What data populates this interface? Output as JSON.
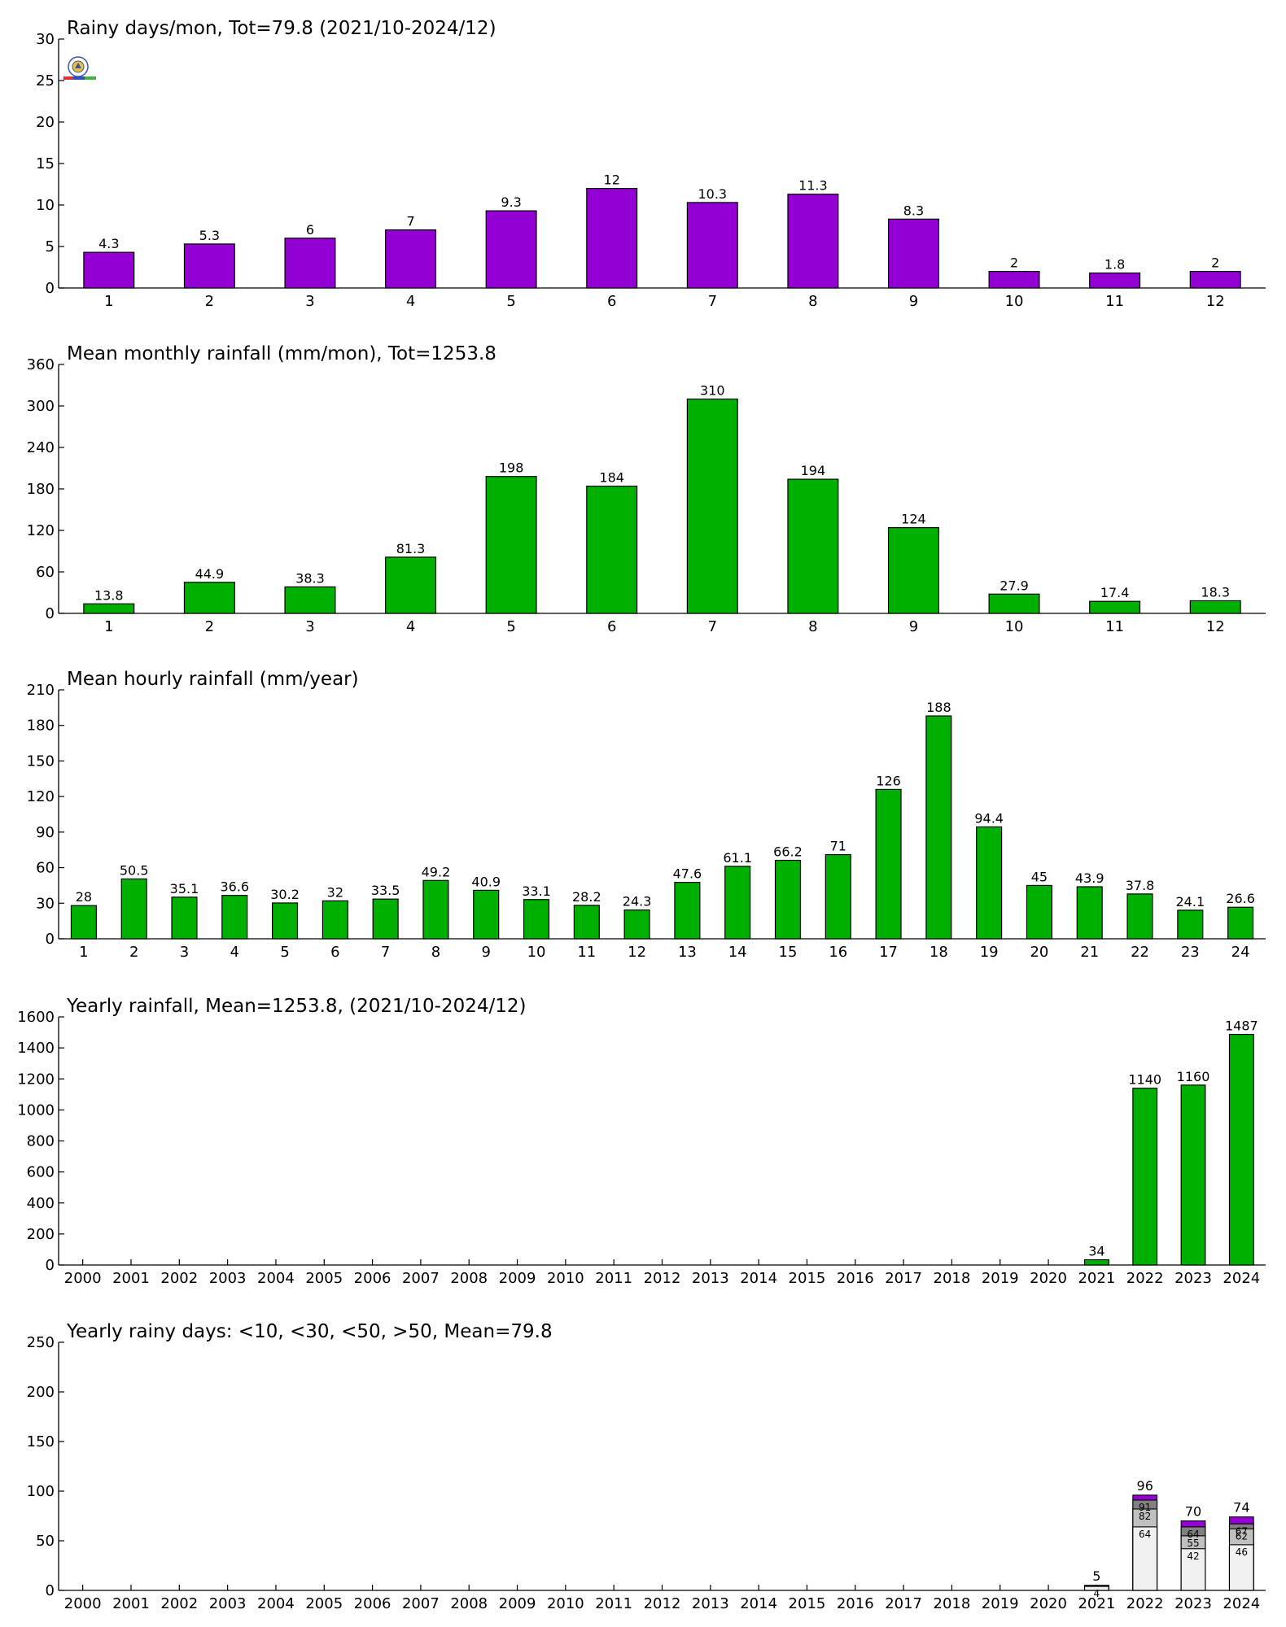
{
  "chart_data": [
    {
      "type": "bar",
      "title": "Rainy days/mon, Tot=79.8 (2021/10-2024/12)",
      "xlabel": "",
      "ylabel": "",
      "categories": [
        "1",
        "2",
        "3",
        "4",
        "5",
        "6",
        "7",
        "8",
        "9",
        "10",
        "11",
        "12"
      ],
      "values": [
        4.3,
        5.3,
        6,
        7,
        9.3,
        12,
        10.3,
        11.3,
        8.3,
        2,
        1.8,
        2
      ],
      "value_labels": [
        "4.3",
        "5.3",
        "6",
        "7",
        "9.3",
        "12",
        "10.3",
        "11.3",
        "8.3",
        "2",
        "1.8",
        "2"
      ],
      "ylim": [
        0,
        30
      ],
      "yticks": [
        0,
        5,
        10,
        15,
        20,
        25,
        30
      ],
      "color": "#9400d3",
      "grid": false
    },
    {
      "type": "bar",
      "title": "Mean monthly rainfall (mm/mon), Tot=1253.8",
      "xlabel": "",
      "ylabel": "",
      "categories": [
        "1",
        "2",
        "3",
        "4",
        "5",
        "6",
        "7",
        "8",
        "9",
        "10",
        "11",
        "12"
      ],
      "values": [
        13.8,
        44.9,
        38.3,
        81.3,
        198,
        184,
        310,
        194,
        124,
        27.9,
        17.4,
        18.3
      ],
      "value_labels": [
        "13.8",
        "44.9",
        "38.3",
        "81.3",
        "198",
        "184",
        "310",
        "194",
        "124",
        "27.9",
        "17.4",
        "18.3"
      ],
      "ylim": [
        0,
        360
      ],
      "yticks": [
        0,
        60,
        120,
        180,
        240,
        300,
        360
      ],
      "color": "#00b000",
      "grid": false
    },
    {
      "type": "bar",
      "title": "Mean hourly rainfall (mm/year)",
      "xlabel": "",
      "ylabel": "",
      "categories": [
        "1",
        "2",
        "3",
        "4",
        "5",
        "6",
        "7",
        "8",
        "9",
        "10",
        "11",
        "12",
        "13",
        "14",
        "15",
        "16",
        "17",
        "18",
        "19",
        "20",
        "21",
        "22",
        "23",
        "24"
      ],
      "values": [
        28,
        50.5,
        35.1,
        36.6,
        30.2,
        32,
        33.5,
        49.2,
        40.9,
        33.1,
        28.2,
        24.3,
        47.6,
        61.1,
        66.2,
        71,
        126,
        188,
        94.4,
        45,
        43.9,
        37.8,
        24.1,
        26.6
      ],
      "value_labels": [
        "28",
        "50.5",
        "35.1",
        "36.6",
        "30.2",
        "32",
        "33.5",
        "49.2",
        "40.9",
        "33.1",
        "28.2",
        "24.3",
        "47.6",
        "61.1",
        "66.2",
        "71",
        "126",
        "188",
        "94.4",
        "45",
        "43.9",
        "37.8",
        "24.1",
        "26.6"
      ],
      "ylim": [
        0,
        210
      ],
      "yticks": [
        0,
        30,
        60,
        90,
        120,
        150,
        180,
        210
      ],
      "color": "#00b000",
      "grid": false
    },
    {
      "type": "bar",
      "title": "Yearly rainfall, Mean=1253.8, (2021/10-2024/12)",
      "xlabel": "",
      "ylabel": "",
      "categories": [
        "2000",
        "2001",
        "2002",
        "2003",
        "2004",
        "2005",
        "2006",
        "2007",
        "2008",
        "2009",
        "2010",
        "2011",
        "2012",
        "2013",
        "2014",
        "2015",
        "2016",
        "2017",
        "2018",
        "2019",
        "2020",
        "2021",
        "2022",
        "2023",
        "2024"
      ],
      "values": [
        0,
        0,
        0,
        0,
        0,
        0,
        0,
        0,
        0,
        0,
        0,
        0,
        0,
        0,
        0,
        0,
        0,
        0,
        0,
        0,
        0,
        34,
        1140,
        1160,
        1487
      ],
      "value_labels": [
        "",
        "",
        "",
        "",
        "",
        "",
        "",
        "",
        "",
        "",
        "",
        "",
        "",
        "",
        "",
        "",
        "",
        "",
        "",
        "",
        "",
        "34",
        "1140",
        "1160",
        "1487"
      ],
      "ylim": [
        0,
        1600
      ],
      "yticks": [
        0,
        200,
        400,
        600,
        800,
        1000,
        1200,
        1400,
        1600
      ],
      "color": "#00b000",
      "grid": false
    },
    {
      "type": "bar",
      "stacked": true,
      "title": "Yearly rainy days: <10, <30, <50, >50, Mean=79.8",
      "xlabel": "",
      "ylabel": "",
      "categories": [
        "2000",
        "2001",
        "2002",
        "2003",
        "2004",
        "2005",
        "2006",
        "2007",
        "2008",
        "2009",
        "2010",
        "2011",
        "2012",
        "2013",
        "2014",
        "2015",
        "2016",
        "2017",
        "2018",
        "2019",
        "2020",
        "2021",
        "2022",
        "2023",
        "2024"
      ],
      "ylim": [
        0,
        250
      ],
      "yticks": [
        0,
        50,
        100,
        150,
        200,
        250
      ],
      "grid": false,
      "stacks": [
        {
          "category": "2021",
          "levels": [
            4,
            5,
            5,
            5
          ],
          "labels": [
            "4",
            "",
            "",
            "5"
          ]
        },
        {
          "category": "2022",
          "levels": [
            64,
            82,
            91,
            96
          ],
          "labels": [
            "64",
            "82",
            "91",
            "96"
          ]
        },
        {
          "category": "2023",
          "levels": [
            42,
            55,
            64,
            70
          ],
          "labels": [
            "42",
            "55",
            "64",
            "70"
          ]
        },
        {
          "category": "2024",
          "levels": [
            46,
            62,
            67,
            74
          ],
          "labels": [
            "46",
            "62",
            "67",
            "74"
          ]
        }
      ],
      "segment_colors": [
        "#f0f0f0",
        "#c0c0c0",
        "#808080",
        "#9400d3"
      ]
    }
  ]
}
